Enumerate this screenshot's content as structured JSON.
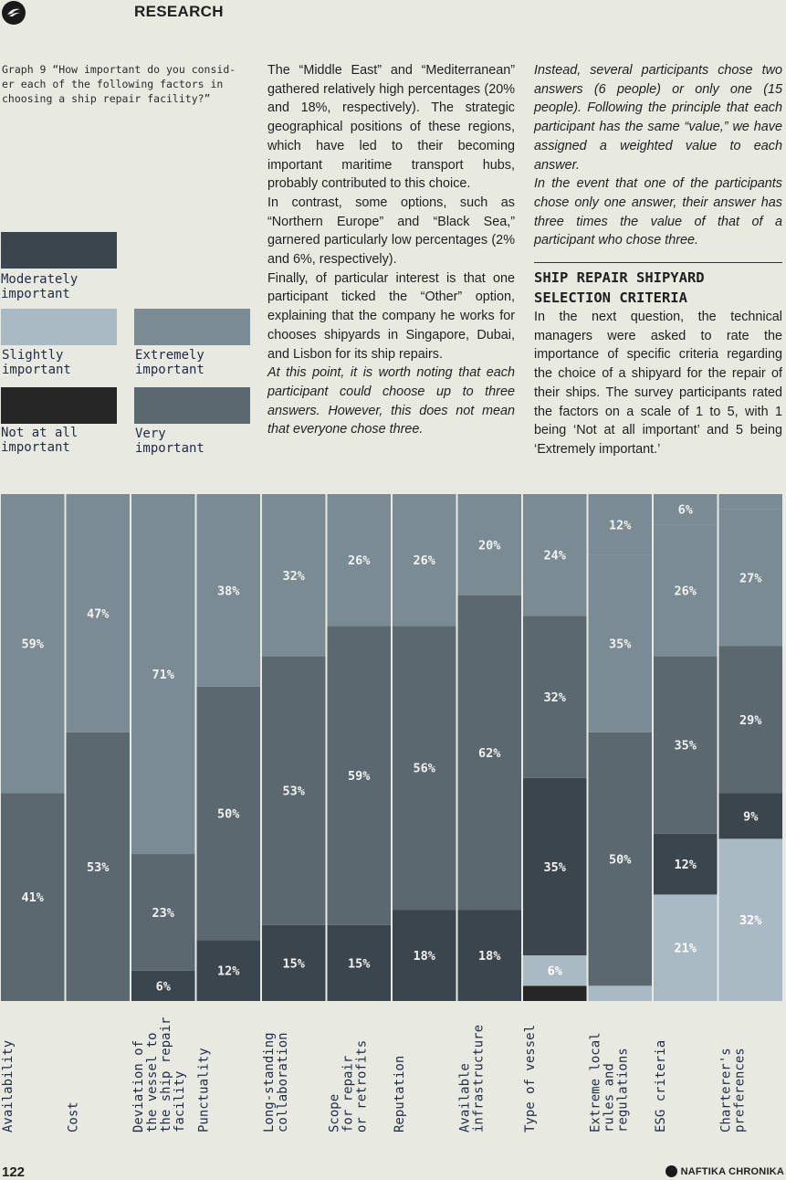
{
  "header": {
    "section": "RESEARCH"
  },
  "caption": "Graph 9 “How important do you consid- er each of the following factors in choosing a ship repair facility?”",
  "legend": [
    {
      "label": "Moderately important",
      "color": "#3b454d"
    },
    {
      "label": "Slightly important",
      "color": "#a9bac5"
    },
    {
      "label": "Extremely important",
      "color": "#7a8b94"
    },
    {
      "label": "Not at all important",
      "color": "#262626"
    },
    {
      "label": "Very important",
      "color": "#5b6870"
    }
  ],
  "body": {
    "col1_p1": "The “Middle East” and “Mediterranean” gathered relatively high percentages (20% and 18%, respectively). The strategic geographical positions of these regions, which have led to their becoming important maritime transport hubs, probably contributed to this choice.",
    "col1_p2": "In contrast, some options, such as “Northern Europe” and “Black Sea,” garnered particularly low percentages (2% and 6%, respectively).",
    "col1_p3": "Finally, of particular interest is that one participant ticked the “Other” option, explaining that the company he works for chooses shipyards in Singapore, Dubai, and Lisbon for its ship repairs.",
    "col1_p4": "At this point, it is worth noting that each participant could choose up to three answers. However, this does not mean that everyone chose three.",
    "col2_p1": "Instead, several participants chose two answers (6 people) or only one (15 people). Following the principle that each participant has the same “value,” we have assigned a weighted value to each answer.",
    "col2_p2": "In the event that one of the participants chose only one answer, their answer has three times the value of that of a participant who chose three.",
    "col2_heading": "SHIP REPAIR SHIPYARD SELECTION CRITERIA",
    "col2_p3": "In the next question, the technical managers were asked to rate the importance of specific criteria regarding the choice of a shipyard for the repair of their ships. The survey participants rated the factors on a scale of 1 to 5, with 1 being ‘Not at all important’ and 5 being ‘Extremely important.’"
  },
  "chart_data": {
    "type": "bar",
    "stacked": true,
    "normalized_to": 100,
    "stack_order_bottom_to_top": [
      "Not at all important",
      "Slightly important",
      "Moderately important",
      "Very important",
      "Extremely important"
    ],
    "colors": {
      "Not at all important": "#262626",
      "Slightly important": "#a9bac5",
      "Moderately important": "#3b454d",
      "Very important": "#5b6870",
      "Extremely important": "#7a8b94"
    },
    "categories": [
      {
        "name": "Availability",
        "lines": [
          "Availability"
        ]
      },
      {
        "name": "Cost",
        "lines": [
          "Cost"
        ]
      },
      {
        "name": "Deviation of the vessel to the ship repair facility",
        "lines": [
          "Deviation of",
          "the vessel to",
          "the ship repair",
          "facility"
        ]
      },
      {
        "name": "Punctuality",
        "lines": [
          "Punctuality"
        ]
      },
      {
        "name": "Long-standing collaboration",
        "lines": [
          "Long-standing",
          "collaboration"
        ]
      },
      {
        "name": "Scope for repair or retrofits",
        "lines": [
          "Scope",
          "for repair",
          "or retrofits"
        ]
      },
      {
        "name": "Reputation",
        "lines": [
          "Reputation"
        ]
      },
      {
        "name": "Available infrastructure",
        "lines": [
          "Available",
          "infrastructure"
        ]
      },
      {
        "name": "Type of vessel",
        "lines": [
          "Type of vessel"
        ]
      },
      {
        "name": "Extreme local rules and regulations",
        "lines": [
          "Extreme local",
          "rules and",
          "regulations"
        ]
      },
      {
        "name": "ESG criteria",
        "lines": [
          "ESG criteria"
        ]
      },
      {
        "name": "Charterer's preferences",
        "lines": [
          "Charterer's",
          "preferences"
        ]
      }
    ],
    "series": [
      {
        "name": "Not at all important",
        "values": [
          0,
          0,
          0,
          0,
          0,
          0,
          0,
          0,
          3,
          0,
          0,
          0
        ],
        "labels": [
          "",
          "",
          "",
          "",
          "",
          "",
          "",
          "",
          "",
          "",
          "",
          ""
        ]
      },
      {
        "name": "Slightly important",
        "values": [
          0,
          0,
          0,
          0,
          0,
          0,
          0,
          0,
          6,
          3,
          21,
          32
        ],
        "labels": [
          "",
          "",
          "",
          "",
          "",
          "",
          "",
          "",
          "6%",
          "",
          "21%",
          "32%"
        ]
      },
      {
        "name": "Moderately important",
        "values": [
          0,
          0,
          6,
          12,
          15,
          15,
          18,
          18,
          35,
          0,
          12,
          9
        ],
        "labels": [
          "",
          "",
          "6%",
          "12%",
          "15%",
          "15%",
          "18%",
          "18%",
          "35%",
          "",
          "12%",
          "9%"
        ]
      },
      {
        "name": "Very important",
        "values": [
          41,
          53,
          23,
          50,
          53,
          59,
          56,
          62,
          32,
          50,
          35,
          29
        ],
        "labels": [
          "41%",
          "53%",
          "23%",
          "50%",
          "53%",
          "59%",
          "56%",
          "62%",
          "32%",
          "50%",
          "35%",
          "29%"
        ]
      },
      {
        "name": "Extremely important",
        "values": [
          59,
          47,
          71,
          38,
          32,
          26,
          26,
          20,
          24,
          35,
          26,
          27
        ],
        "labels": [
          "59%",
          "47%",
          "71%",
          "38%",
          "32%",
          "26%",
          "26%",
          "20%",
          "24%",
          "35%",
          "26%",
          "27%"
        ]
      },
      {
        "name": "Extremely important (top)",
        "values": [
          0,
          0,
          0,
          0,
          0,
          0,
          0,
          0,
          0,
          12,
          6,
          3
        ],
        "labels": [
          "",
          "",
          "",
          "",
          "",
          "",
          "",
          "",
          "",
          "12%",
          "6%",
          ""
        ]
      }
    ]
  },
  "footer": {
    "page": "122",
    "brand": "NAFTIKA CHRONIKA"
  }
}
